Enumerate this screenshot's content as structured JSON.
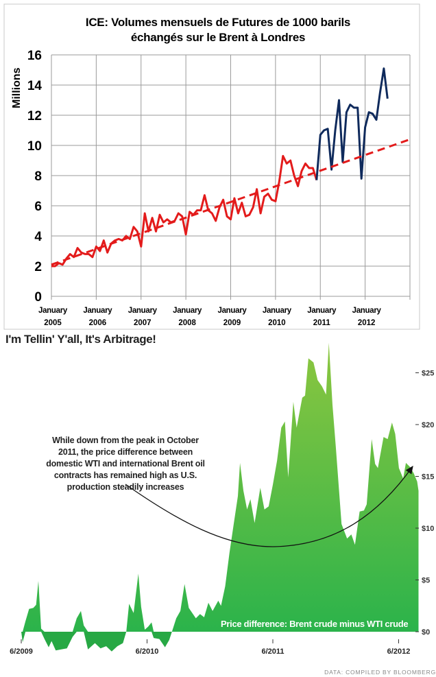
{
  "chart_data": [
    {
      "type": "line",
      "title": "ICE: Volumes mensuels de Futures de 1000 barils échangés sur le Brent à Londres",
      "title_lines": [
        "ICE: Volumes mensuels de Futures de 1000 barils",
        "échangés sur le Brent à Londres"
      ],
      "ylabel": "Millions",
      "xlabel": "",
      "ylim": [
        0,
        16
      ],
      "yticks": [
        0,
        2,
        4,
        6,
        8,
        10,
        12,
        14,
        16
      ],
      "xlim": [
        2005,
        2013
      ],
      "xticks": [
        {
          "year": 2005,
          "line1": "January",
          "line2": "2005"
        },
        {
          "year": 2006,
          "line1": "January",
          "line2": "2006"
        },
        {
          "year": 2007,
          "line1": "January",
          "line2": "2007"
        },
        {
          "year": 2008,
          "line1": "January",
          "line2": "2008"
        },
        {
          "year": 2009,
          "line1": "January",
          "line2": "2009"
        },
        {
          "year": 2010,
          "line1": "January",
          "line2": "2010"
        },
        {
          "year": 2011,
          "line1": "January",
          "line2": "2011"
        },
        {
          "year": 2012,
          "line1": "January",
          "line2": "2012"
        }
      ],
      "grid": true,
      "x_start": "2005-01",
      "x_step": "month",
      "series": [
        {
          "name": "2005-2010",
          "color": "#e31b1b",
          "start_index": 0,
          "values": [
            2.0,
            2.0,
            2.2,
            2.1,
            2.5,
            2.8,
            2.6,
            3.2,
            2.9,
            2.8,
            2.8,
            2.6,
            3.3,
            3.0,
            3.7,
            2.9,
            3.5,
            3.7,
            3.8,
            3.7,
            4.0,
            3.8,
            4.6,
            4.3,
            3.3,
            5.5,
            4.3,
            5.2,
            4.3,
            5.4,
            4.9,
            5.1,
            4.9,
            5.0,
            5.5,
            5.3,
            4.1,
            5.6,
            5.4,
            5.7,
            5.7,
            6.7,
            5.7,
            5.5,
            5.0,
            5.9,
            6.4,
            5.3,
            5.1,
            6.5,
            5.5,
            6.2,
            5.3,
            5.4,
            5.9,
            7.1,
            5.5,
            6.6,
            6.8,
            6.4,
            6.3,
            7.6,
            9.3,
            8.8,
            9.0,
            8.0,
            7.3,
            8.3,
            8.8,
            8.5,
            8.5,
            7.7
          ]
        },
        {
          "name": "2011-2012",
          "color": "#0f2a5c",
          "start_index": 71,
          "values": [
            7.7,
            10.7,
            11.0,
            11.1,
            8.4,
            11.0,
            13.0,
            8.9,
            12.2,
            12.7,
            12.5,
            12.5,
            7.8,
            11.2,
            12.2,
            12.1,
            11.7,
            13.5,
            15.1,
            13.1
          ]
        },
        {
          "name": "trend",
          "color": "#e31b1b",
          "dashed": true,
          "x": [
            2005,
            2013
          ],
          "values": [
            2.1,
            10.4
          ]
        }
      ]
    },
    {
      "type": "area",
      "title": "I'm Tellin' Y'all, It's Arbitrage!",
      "series_label": "Price difference: Brent crude minus WTI crude",
      "annotation": [
        "While down from the peak in October",
        "2011, the price difference between",
        "domestic WTI and international Brent oil",
        "contracts has remained high as U.S.",
        "production steadily increases"
      ],
      "source": "DATA: COMPILED BY BLOOMBERG",
      "ylim": [
        -2,
        28
      ],
      "yticks": [
        {
          "v": 0,
          "label": "$0"
        },
        {
          "v": 5,
          "label": "$5"
        },
        {
          "v": 10,
          "label": "$10"
        },
        {
          "v": 15,
          "label": "$15"
        },
        {
          "v": 20,
          "label": "$20"
        },
        {
          "v": 25,
          "label": "$25"
        }
      ],
      "xticks": [
        {
          "v": 2009.417,
          "label": "6/2009"
        },
        {
          "v": 2010.417,
          "label": "6/2010"
        },
        {
          "v": 2011.417,
          "label": "6/2011"
        },
        {
          "v": 2012.417,
          "label": "6/2012"
        }
      ],
      "colors": {
        "top": "#8cc63f",
        "bottom": "#2bb34b",
        "negative": "#27a844"
      },
      "x": [
        2009.417,
        2009.428,
        2009.45,
        2009.479,
        2009.513,
        2009.535,
        2009.553,
        2009.575,
        2009.602,
        2009.635,
        2009.658,
        2009.691,
        2009.735,
        2009.78,
        2009.825,
        2009.858,
        2009.891,
        2009.914,
        2009.947,
        2010.003,
        2010.047,
        2010.092,
        2010.136,
        2010.181,
        2010.225,
        2010.252,
        2010.274,
        2010.31,
        2010.348,
        2010.37,
        2010.399,
        2010.426,
        2010.453,
        2010.47,
        2010.515,
        2010.56,
        2010.593,
        2010.615,
        2010.649,
        2010.682,
        2010.715,
        2010.749,
        2010.805,
        2010.838,
        2010.871,
        2010.905,
        2010.938,
        2010.983,
        2011.005,
        2011.038,
        2011.072,
        2011.105,
        2011.139,
        2011.156,
        2011.183,
        2011.212,
        2011.239,
        2011.272,
        2011.317,
        2011.35,
        2011.384,
        2011.417,
        2011.45,
        2011.484,
        2011.513,
        2011.539,
        2011.58,
        2011.606,
        2011.651,
        2011.673,
        2011.7,
        2011.74,
        2011.773,
        2011.807,
        2011.84,
        2011.862,
        2011.891,
        2011.918,
        2011.963,
        2012.007,
        2012.041,
        2012.07,
        2012.107,
        2012.141,
        2012.163,
        2012.203,
        2012.23,
        2012.252,
        2012.297,
        2012.33,
        2012.364,
        2012.39,
        2012.419,
        2012.453,
        2012.475,
        2012.508,
        2012.537,
        2012.564,
        2012.575
      ],
      "values": [
        0,
        -1.0,
        1.0,
        2.2,
        2.3,
        2.6,
        4.9,
        0.3,
        -0.7,
        -1.5,
        -0.9,
        -1.8,
        -1.7,
        -1.6,
        -0.5,
        1.3,
        2.0,
        0.6,
        -1.7,
        -1.1,
        -1.6,
        -1.4,
        -1.9,
        -1.4,
        -1.1,
        0,
        2.7,
        1.8,
        5.6,
        2.4,
        0.2,
        0.5,
        0.9,
        -0.6,
        -0.7,
        -1.5,
        -0.8,
        0,
        1.3,
        2.0,
        4.6,
        2.3,
        1.3,
        1.7,
        1.4,
        2.8,
        2.0,
        3.0,
        2.5,
        4.4,
        7.6,
        10.3,
        13.1,
        16.3,
        13.6,
        11.8,
        12.8,
        10.5,
        13.9,
        11.8,
        12.1,
        14.2,
        16.5,
        19.7,
        20.3,
        14.9,
        22.2,
        19.7,
        22.6,
        22.8,
        26.4,
        26.0,
        24.3,
        23.7,
        22.9,
        27.9,
        21.9,
        17.8,
        10.4,
        9.0,
        9.4,
        8.4,
        11.6,
        11.7,
        12.3,
        18.6,
        16.2,
        15.8,
        18.8,
        18.6,
        20.2,
        19.1,
        15.8,
        14.8,
        16.3,
        15.9,
        15.3,
        14.5,
        13.6
      ]
    }
  ]
}
